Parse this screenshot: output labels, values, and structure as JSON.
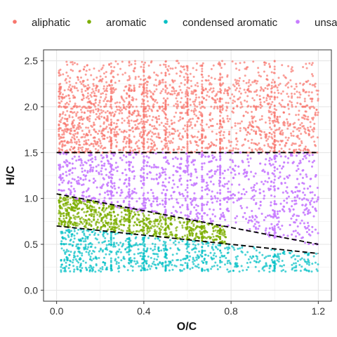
{
  "chart_data": {
    "type": "scatter",
    "xlabel": "O/C",
    "ylabel": "H/C",
    "xlim": [
      -0.06,
      1.26
    ],
    "ylim": [
      -0.12,
      2.62
    ],
    "x_ticks": [
      0.0,
      0.4,
      0.8,
      1.2
    ],
    "x_tick_labels": [
      "0.0",
      "0.4",
      "0.8",
      "1.2"
    ],
    "y_ticks": [
      0.0,
      0.5,
      1.0,
      1.5,
      2.0,
      2.5
    ],
    "y_tick_labels": [
      "0.0",
      "0.5",
      "1.0",
      "1.5",
      "2.0",
      "2.5"
    ],
    "grid": true,
    "legend_position": "top",
    "series": [
      {
        "name": "aliphatic",
        "color": "#F8766D",
        "x_range": [
          0.01,
          1.2
        ],
        "y_range": [
          1.5,
          2.5
        ]
      },
      {
        "name": "aromatic",
        "color": "#7CAE00",
        "x_range": [
          0.01,
          0.8
        ],
        "y_range": [
          0.5,
          1.05
        ]
      },
      {
        "name": "condensed aromatic",
        "color": "#00BFC4",
        "x_range": [
          0.02,
          1.2
        ],
        "y_range": [
          0.2,
          0.7
        ]
      },
      {
        "name": "unsaturated",
        "color": "#C77CFF",
        "x_range": [
          0.01,
          1.2
        ],
        "y_range": [
          0.45,
          1.5
        ]
      }
    ],
    "reference_lines": [
      {
        "style": "dashed",
        "x": [
          0.0,
          1.2
        ],
        "y": [
          1.5,
          1.5
        ]
      },
      {
        "style": "dashed",
        "x": [
          0.0,
          1.2
        ],
        "y": [
          1.05,
          0.5
        ]
      },
      {
        "style": "dashed",
        "x": [
          0.0,
          1.2
        ],
        "y": [
          0.7,
          0.4
        ]
      }
    ]
  }
}
